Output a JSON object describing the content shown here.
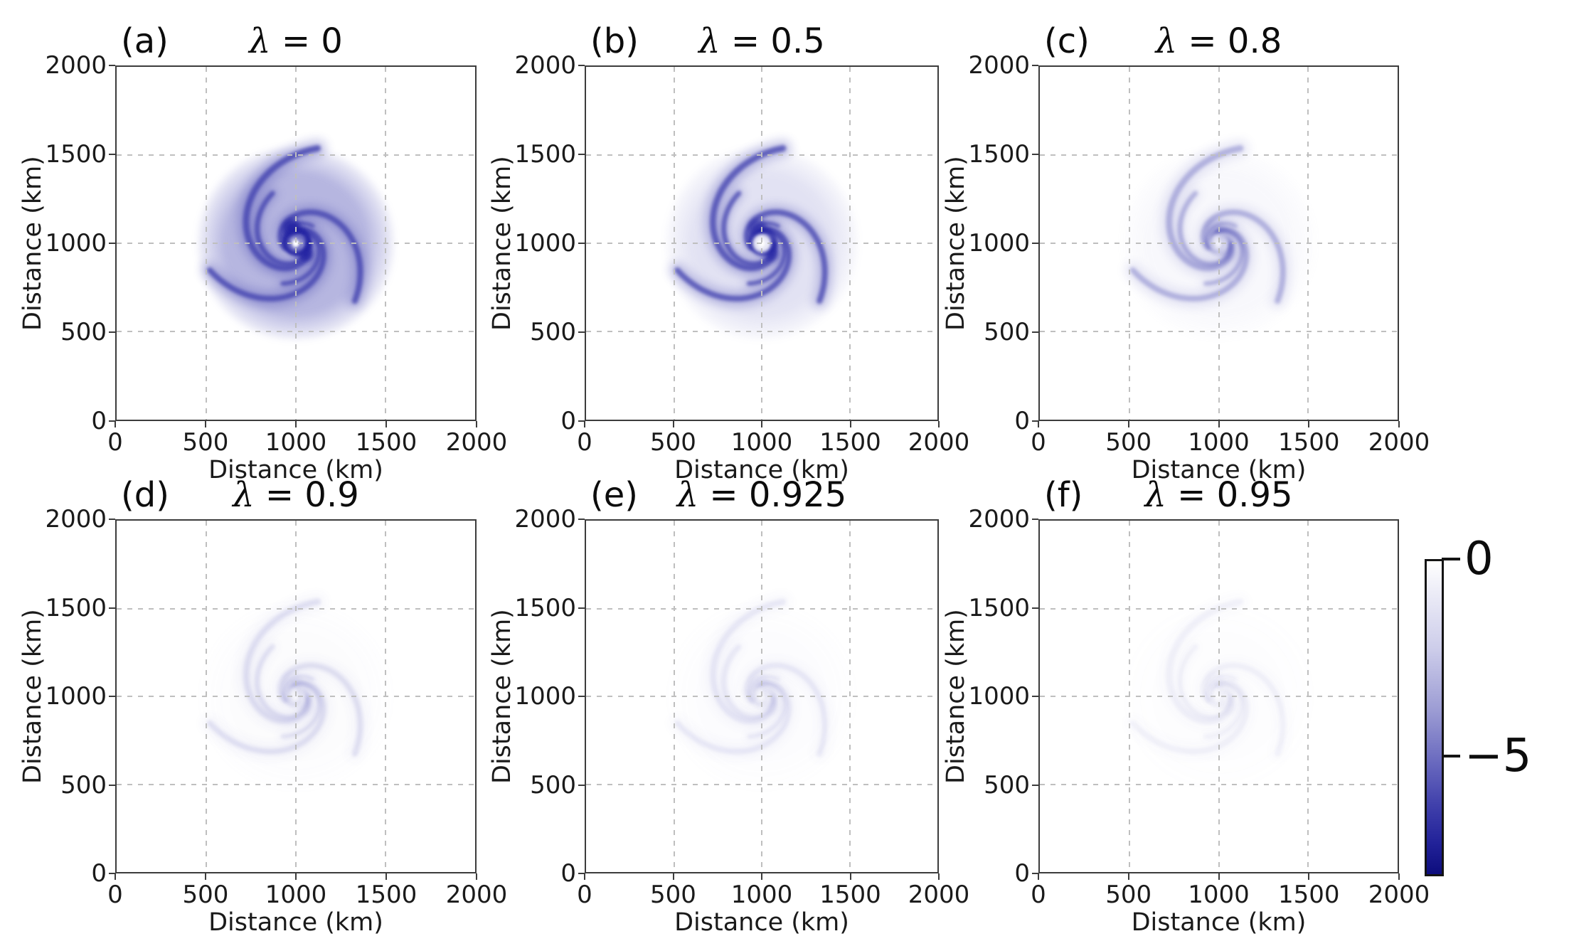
{
  "figure": {
    "panels": [
      {
        "tag": "(a)",
        "title": "λ = 0",
        "lambda": 0,
        "render": {
          "disc": 0.78,
          "arms": 0.85,
          "core": 0.95,
          "hole": 0.2
        }
      },
      {
        "tag": "(b)",
        "title": "λ = 0.5",
        "lambda": 0.5,
        "render": {
          "disc": 0.3,
          "arms": 0.8,
          "core": 0.7,
          "hole": 0.85
        }
      },
      {
        "tag": "(c)",
        "title": "λ = 0.8",
        "lambda": 0.8,
        "render": {
          "disc": 0.07,
          "arms": 0.33,
          "core": 0.1,
          "hole": 0.4
        }
      },
      {
        "tag": "(d)",
        "title": "λ = 0.9",
        "lambda": 0.9,
        "render": {
          "disc": 0.025,
          "arms": 0.13,
          "core": 0.04,
          "hole": 0.15
        }
      },
      {
        "tag": "(e)",
        "title": "λ = 0.925",
        "lambda": 0.925,
        "render": {
          "disc": 0.018,
          "arms": 0.09,
          "core": 0.03,
          "hole": 0.1
        }
      },
      {
        "tag": "(f)",
        "title": "λ = 0.95",
        "lambda": 0.95,
        "render": {
          "disc": 0.012,
          "arms": 0.055,
          "core": 0.02,
          "hole": 0.06
        }
      }
    ],
    "axes": {
      "xlabel": "Distance (km)",
      "ylabel": "Distance (km)",
      "xtick_labels": [
        "0",
        "500",
        "1000",
        "1500",
        "2000"
      ],
      "ytick_labels": [
        "2000",
        "1500",
        "1000",
        "500",
        "0"
      ]
    },
    "colorbar": {
      "labels": [
        "0",
        "−5"
      ]
    },
    "spiral_colors": {
      "disc": "#a2a2d8",
      "arm": "#4a4ab2",
      "core": "#2424a2"
    }
  },
  "chart_data": {
    "type": "heatmap",
    "layout": "2x3 grid of map-view vortex snapshots, shared axes, one shared colorbar",
    "panels": [
      {
        "tag": "(a)",
        "lambda": 0,
        "approx_min_value": -8,
        "structure": "dense filled spiral disc, radius ≈ 550 km, dark blue core bands near centre, small white eye at (1000, 1000)"
      },
      {
        "tag": "(b)",
        "lambda": 0.5,
        "approx_min_value": -7,
        "structure": "open spiral with strong discrete rainbands, clear white eye, tail extending to ≈1550 km at top"
      },
      {
        "tag": "(c)",
        "lambda": 0.8,
        "approx_min_value": -3,
        "structure": "thin faint spiral band wrapping ≈1.5 turns around centre"
      },
      {
        "tag": "(d)",
        "lambda": 0.9,
        "approx_min_value": -1.5,
        "structure": "very faint broken spiral fragments"
      },
      {
        "tag": "(e)",
        "lambda": 0.925,
        "approx_min_value": -1,
        "structure": "barely visible spiral traces"
      },
      {
        "tag": "(f)",
        "lambda": 0.95,
        "approx_min_value": -0.7,
        "structure": "almost blank, faintest spiral remnants"
      }
    ],
    "x_axis": {
      "label": "Distance (km)",
      "range": [
        0,
        2000
      ],
      "ticks": [
        0,
        500,
        1000,
        1500,
        2000
      ]
    },
    "y_axis": {
      "label": "Distance (km)",
      "range": [
        0,
        2000
      ],
      "ticks": [
        0,
        500,
        1000,
        1500,
        2000
      ]
    },
    "vortex_center_km": [
      1000,
      1000
    ],
    "colorbar": {
      "tick_labels": [
        "0",
        "−5"
      ],
      "ticks": [
        0,
        -5
      ],
      "estimated_range": [
        0,
        -8
      ],
      "colormap": "white at 0 to dark navy blue at minimum"
    },
    "grid": {
      "style": "dashed gray",
      "positions_km": [
        500,
        1000,
        1500
      ]
    }
  }
}
